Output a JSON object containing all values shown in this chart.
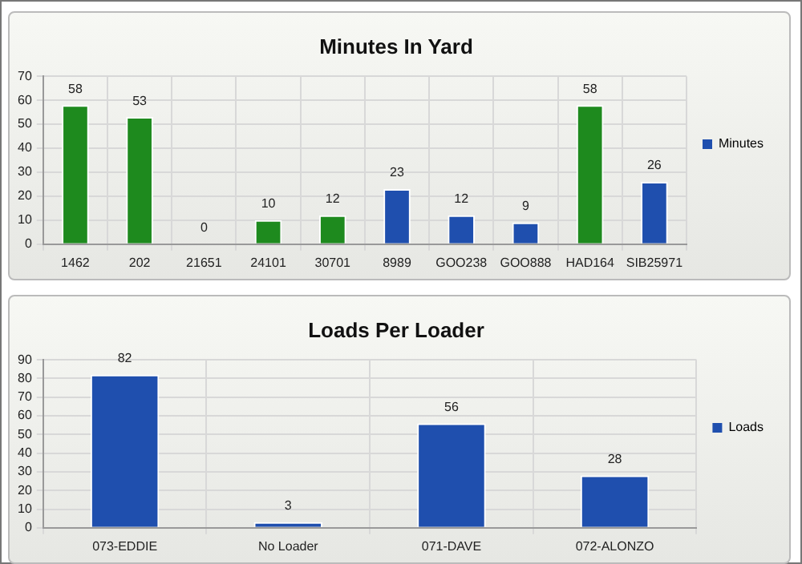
{
  "chart_data": [
    {
      "type": "bar",
      "title": "Minutes In Yard",
      "categories": [
        "1462",
        "202",
        "21651",
        "24101",
        "30701",
        "8989",
        "GOO238",
        "GOO888",
        "HAD164",
        "SIB25971"
      ],
      "series": [
        {
          "name": "Minutes",
          "color": "#1f4fae",
          "colors": [
            "#1e8a1e",
            "#1e8a1e",
            "#1e8a1e",
            "#1e8a1e",
            "#1e8a1e",
            "#1f4fae",
            "#1f4fae",
            "#1f4fae",
            "#1e8a1e",
            "#1f4fae"
          ],
          "values": [
            58,
            53,
            0,
            10,
            12,
            23,
            12,
            9,
            58,
            26
          ]
        }
      ],
      "ylim": [
        0,
        70
      ],
      "yticks": [
        0,
        10,
        20,
        30,
        40,
        50,
        60,
        70
      ],
      "grid": true,
      "legend": "right",
      "data_labels": true
    },
    {
      "type": "bar",
      "title": "Loads Per Loader",
      "categories": [
        "073-EDDIE",
        "No Loader",
        "071-DAVE",
        "072-ALONZO"
      ],
      "series": [
        {
          "name": "Loads",
          "color": "#1f4fae",
          "values": [
            82,
            3,
            56,
            28
          ]
        }
      ],
      "ylim": [
        0,
        90
      ],
      "yticks": [
        0,
        10,
        20,
        30,
        40,
        50,
        60,
        70,
        80,
        90
      ],
      "grid": true,
      "legend": "right",
      "data_labels": true
    }
  ]
}
